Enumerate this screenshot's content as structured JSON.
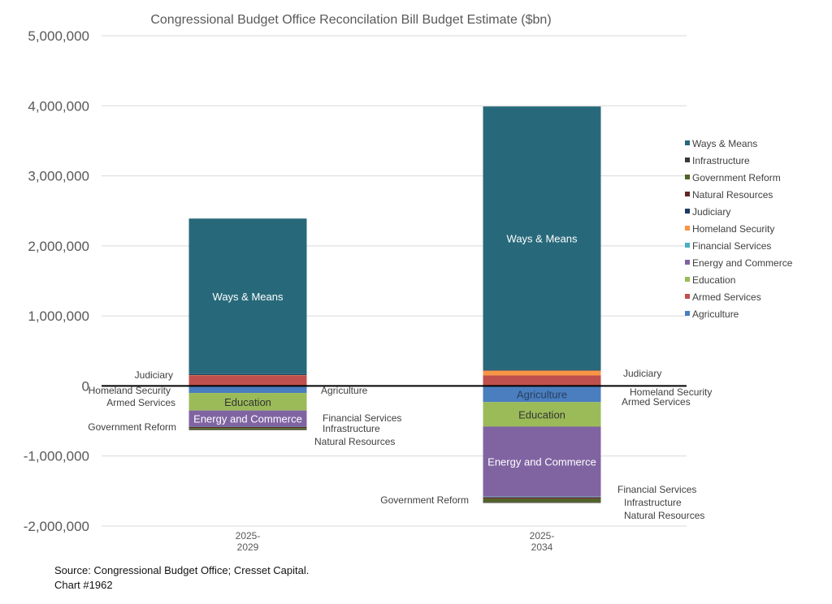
{
  "chart_data": {
    "type": "bar",
    "stacked": true,
    "title": "Congressional Budget Office Reconcilation Bill Budget Estimate ($bn)",
    "categories": [
      "2025-2029",
      "2025-2034"
    ],
    "category_lines": [
      [
        "2025-",
        "2029"
      ],
      [
        "2025-",
        "2034"
      ]
    ],
    "ylim": [
      -2000000,
      5000000
    ],
    "yticks": [
      {
        "value": 5000000,
        "label": "5,000,000"
      },
      {
        "value": 4000000,
        "label": "4,000,000"
      },
      {
        "value": 3000000,
        "label": "3,000,000"
      },
      {
        "value": 2000000,
        "label": "2,000,000"
      },
      {
        "value": 1000000,
        "label": "1,000,000"
      },
      {
        "value": 0,
        "label": "0"
      },
      {
        "value": -1000000,
        "label": "-1,000,000"
      },
      {
        "value": -2000000,
        "label": "-2,000,000"
      }
    ],
    "grid": true,
    "legend_position": "right",
    "series": [
      {
        "name": "Agriculture",
        "color": "#4a7ebf",
        "values": [
          -100000,
          -230000
        ]
      },
      {
        "name": "Armed Services",
        "color": "#c0504d",
        "values": [
          150000,
          150000
        ]
      },
      {
        "name": "Education",
        "color": "#9bbb59",
        "values": [
          -250000,
          -350000
        ]
      },
      {
        "name": "Energy and Commerce",
        "color": "#8064a2",
        "values": [
          -230000,
          -1000000
        ]
      },
      {
        "name": "Financial Services",
        "color": "#4bacc6",
        "values": [
          -5000,
          -10000
        ]
      },
      {
        "name": "Homeland Security",
        "color": "#f79646",
        "values": [
          5000,
          70000
        ]
      },
      {
        "name": "Judiciary",
        "color": "#1f3864",
        "values": [
          15000,
          10000
        ]
      },
      {
        "name": "Natural Resources",
        "color": "#632523",
        "values": [
          -15000,
          -20000
        ]
      },
      {
        "name": "Government Reform",
        "color": "#4f6228",
        "values": [
          -25000,
          -50000
        ]
      },
      {
        "name": "Infrastructure",
        "color": "#3b3838",
        "values": [
          -5000,
          -10000
        ]
      },
      {
        "name": "Ways & Means",
        "color": "#27697a",
        "values": [
          2220000,
          3760000
        ]
      }
    ],
    "legend_order": [
      "Ways & Means",
      "Infrastructure",
      "Government Reform",
      "Natural Resources",
      "Judiciary",
      "Homeland Security",
      "Financial Services",
      "Energy and Commerce",
      "Education",
      "Armed Services",
      "Agriculture"
    ],
    "inside_labels": [
      {
        "bar": 0,
        "series": "Ways & Means",
        "text": "Ways & Means"
      },
      {
        "bar": 0,
        "series": "Education",
        "text": "Education"
      },
      {
        "bar": 0,
        "series": "Energy and Commerce",
        "text": "Energy and Commerce"
      },
      {
        "bar": 1,
        "series": "Ways & Means",
        "text": "Ways & Means"
      },
      {
        "bar": 1,
        "series": "Agriculture",
        "text": "Agriculture"
      },
      {
        "bar": 1,
        "series": "Education",
        "text": "Education"
      },
      {
        "bar": 1,
        "series": "Energy and Commerce",
        "text": "Energy and Commerce"
      }
    ],
    "annotations": [
      {
        "text": "Judiciary"
      },
      {
        "text": "Homeland Security"
      },
      {
        "text": "Armed Services"
      },
      {
        "text": "Government Reform"
      },
      {
        "text": "Agriculture"
      },
      {
        "text": "Financial Services"
      },
      {
        "text": "Infrastructure"
      },
      {
        "text": "Natural Resources"
      },
      {
        "text": "Judiciary"
      },
      {
        "text": "Homeland Security"
      },
      {
        "text": "Armed Services"
      },
      {
        "text": "Government Reform"
      },
      {
        "text": "Financial Services"
      },
      {
        "text": "Infrastructure"
      },
      {
        "text": "Natural Resources"
      }
    ]
  },
  "footer": {
    "source": "Source: Congressional Budget Office; Cresset Capital.",
    "chart_id": "Chart #1962"
  }
}
